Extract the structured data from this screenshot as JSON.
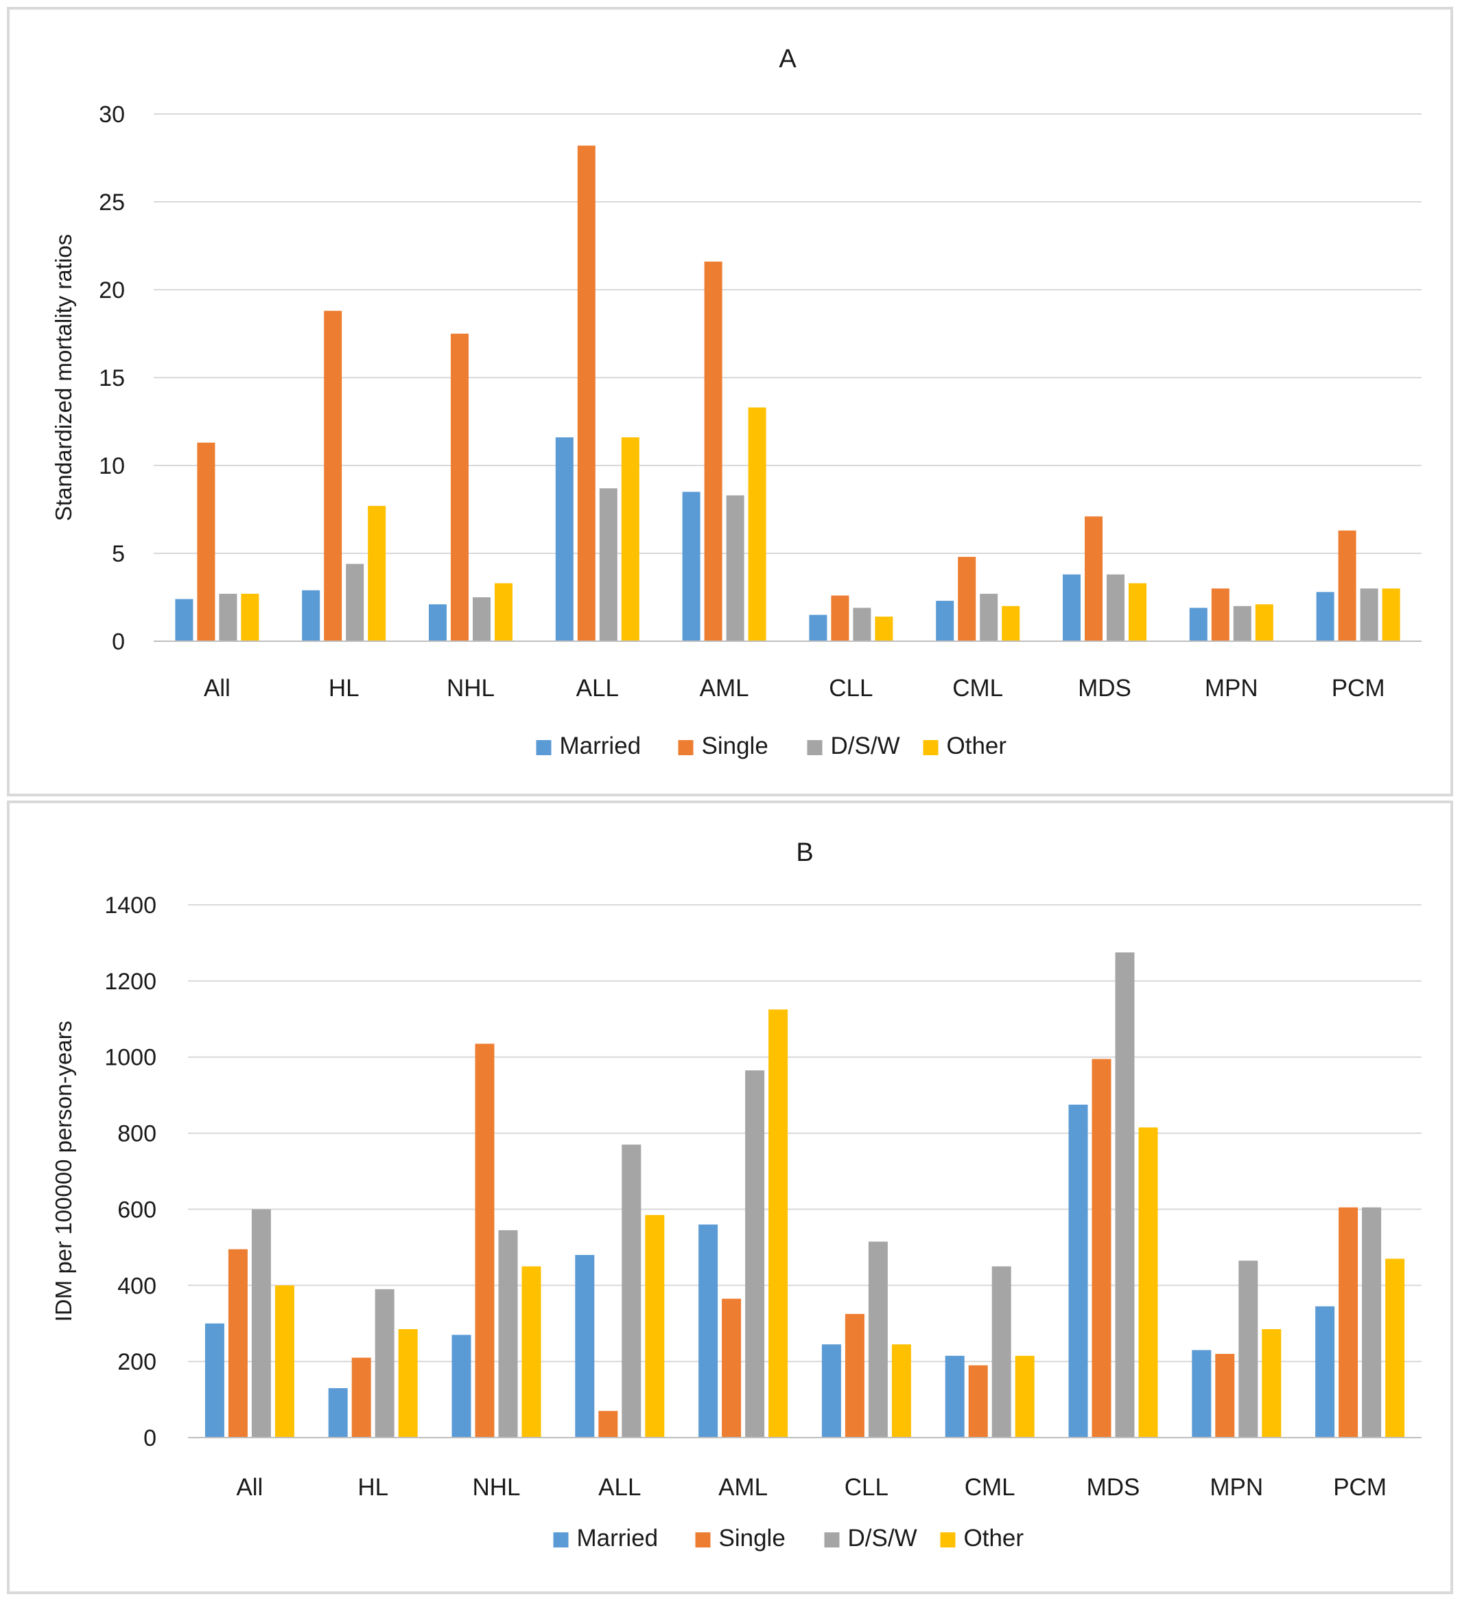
{
  "colors": {
    "Married": "#5b9bd5",
    "Single": "#ed7d31",
    "D/S/W": "#a5a5a5",
    "Other": "#ffc000",
    "grid": "#d9d9d9"
  },
  "chart_data": [
    {
      "type": "bar",
      "title": "A",
      "ylabel": "Standardized mortality ratios",
      "xlabel": "",
      "ylim": [
        0,
        30
      ],
      "yticks": [
        0,
        5,
        10,
        15,
        20,
        25,
        30
      ],
      "grid": true,
      "legend": "bottom",
      "categories": [
        "All",
        "HL",
        "NHL",
        "ALL",
        "AML",
        "CLL",
        "CML",
        "MDS",
        "MPN",
        "PCM"
      ],
      "series": [
        {
          "name": "Married",
          "values": [
            2.4,
            2.9,
            2.1,
            11.6,
            8.5,
            1.5,
            2.3,
            3.8,
            1.9,
            2.8
          ]
        },
        {
          "name": "Single",
          "values": [
            11.3,
            18.8,
            17.5,
            28.2,
            21.6,
            2.6,
            4.8,
            7.1,
            3.0,
            6.3
          ]
        },
        {
          "name": "D/S/W",
          "values": [
            2.7,
            4.4,
            2.5,
            8.7,
            8.3,
            1.9,
            2.7,
            3.8,
            2.0,
            3.0
          ]
        },
        {
          "name": "Other",
          "values": [
            2.7,
            7.7,
            3.3,
            11.6,
            13.3,
            1.4,
            2.0,
            3.3,
            2.1,
            3.0
          ]
        }
      ]
    },
    {
      "type": "bar",
      "title": "B",
      "ylabel": "IDM per 100000 person-years",
      "xlabel": "",
      "ylim": [
        0,
        1400
      ],
      "yticks": [
        0,
        200,
        400,
        600,
        800,
        1000,
        1200,
        1400
      ],
      "grid": true,
      "legend": "bottom",
      "categories": [
        "All",
        "HL",
        "NHL",
        "ALL",
        "AML",
        "CLL",
        "CML",
        "MDS",
        "MPN",
        "PCM"
      ],
      "series": [
        {
          "name": "Married",
          "values": [
            300,
            130,
            270,
            480,
            560,
            245,
            215,
            875,
            230,
            345
          ]
        },
        {
          "name": "Single",
          "values": [
            495,
            210,
            1035,
            70,
            365,
            325,
            190,
            995,
            220,
            605
          ]
        },
        {
          "name": "D/S/W",
          "values": [
            600,
            390,
            545,
            770,
            965,
            515,
            450,
            1275,
            465,
            605
          ]
        },
        {
          "name": "Other",
          "values": [
            400,
            285,
            450,
            585,
            1125,
            245,
            215,
            815,
            285,
            470
          ]
        }
      ]
    }
  ]
}
